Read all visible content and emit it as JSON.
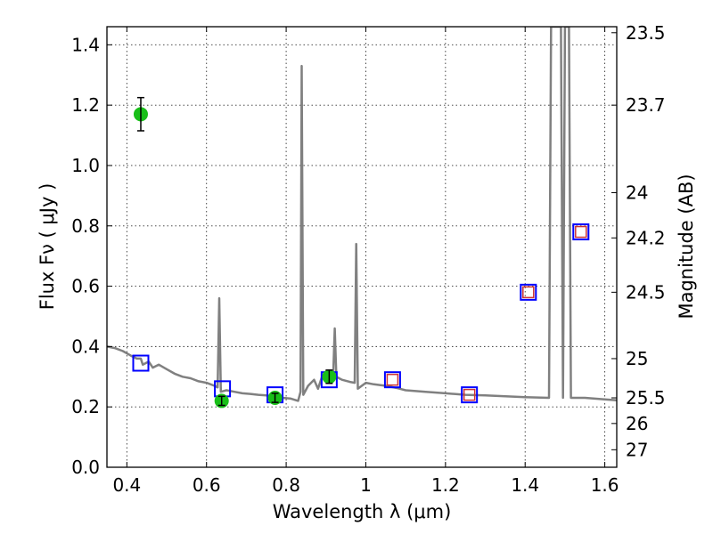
{
  "chart_data": {
    "type": "scatter",
    "xlabel": "Wavelength  λ (μm)",
    "ylabel": "Flux  Fν  ( μJy )",
    "y2label": "Magnitude (AB)",
    "xlim": [
      0.35,
      1.63
    ],
    "ylim": [
      0.0,
      1.46
    ],
    "grid": true,
    "xticks": [
      {
        "value": 0.4,
        "label": "0.4"
      },
      {
        "value": 0.6,
        "label": "0.6"
      },
      {
        "value": 0.8,
        "label": "0.8"
      },
      {
        "value": 1.0,
        "label": "1"
      },
      {
        "value": 1.2,
        "label": "1.2"
      },
      {
        "value": 1.4,
        "label": "1.4"
      },
      {
        "value": 1.6,
        "label": "1.6"
      }
    ],
    "yticks": [
      {
        "value": 0.0,
        "label": "0.0"
      },
      {
        "value": 0.2,
        "label": "0.2"
      },
      {
        "value": 0.4,
        "label": "0.4"
      },
      {
        "value": 0.6,
        "label": "0.6"
      },
      {
        "value": 0.8,
        "label": "0.8"
      },
      {
        "value": 1.0,
        "label": "1.0"
      },
      {
        "value": 1.2,
        "label": "1.2"
      },
      {
        "value": 1.4,
        "label": "1.4"
      }
    ],
    "y2ticks": [
      {
        "label": "23.5",
        "flux": 1.44
      },
      {
        "label": "23.7",
        "flux": 1.2
      },
      {
        "label": "24",
        "flux": 0.91
      },
      {
        "label": "24.2",
        "flux": 0.76
      },
      {
        "label": "24.5",
        "flux": 0.58
      },
      {
        "label": "25",
        "flux": 0.36
      },
      {
        "label": "25.5",
        "flux": 0.23
      },
      {
        "label": "26",
        "flux": 0.145
      },
      {
        "label": "27",
        "flux": 0.058
      }
    ],
    "series": [
      {
        "kind": "line",
        "color": "#808080",
        "points": [
          [
            0.35,
            0.4
          ],
          [
            0.37,
            0.395
          ],
          [
            0.39,
            0.385
          ],
          [
            0.41,
            0.37
          ],
          [
            0.425,
            0.36
          ],
          [
            0.435,
            0.36
          ],
          [
            0.44,
            0.34
          ],
          [
            0.455,
            0.35
          ],
          [
            0.465,
            0.33
          ],
          [
            0.48,
            0.34
          ],
          [
            0.5,
            0.325
          ],
          [
            0.52,
            0.31
          ],
          [
            0.54,
            0.3
          ],
          [
            0.56,
            0.295
          ],
          [
            0.58,
            0.285
          ],
          [
            0.6,
            0.28
          ],
          [
            0.62,
            0.27
          ],
          [
            0.628,
            0.265
          ],
          [
            0.632,
            0.56
          ],
          [
            0.636,
            0.25
          ],
          [
            0.65,
            0.255
          ],
          [
            0.67,
            0.25
          ],
          [
            0.69,
            0.245
          ],
          [
            0.71,
            0.243
          ],
          [
            0.73,
            0.24
          ],
          [
            0.75,
            0.238
          ],
          [
            0.77,
            0.232
          ],
          [
            0.79,
            0.23
          ],
          [
            0.81,
            0.228
          ],
          [
            0.83,
            0.22
          ],
          [
            0.836,
            0.25
          ],
          [
            0.839,
            1.33
          ],
          [
            0.843,
            0.24
          ],
          [
            0.855,
            0.27
          ],
          [
            0.87,
            0.29
          ],
          [
            0.88,
            0.26
          ],
          [
            0.89,
            0.3
          ],
          [
            0.9,
            0.29
          ],
          [
            0.91,
            0.28
          ],
          [
            0.918,
            0.3
          ],
          [
            0.922,
            0.46
          ],
          [
            0.926,
            0.3
          ],
          [
            0.94,
            0.29
          ],
          [
            0.96,
            0.283
          ],
          [
            0.972,
            0.28
          ],
          [
            0.976,
            0.74
          ],
          [
            0.98,
            0.26
          ],
          [
            1.0,
            0.28
          ],
          [
            1.02,
            0.275
          ],
          [
            1.05,
            0.27
          ],
          [
            1.08,
            0.262
          ],
          [
            1.1,
            0.255
          ],
          [
            1.15,
            0.25
          ],
          [
            1.2,
            0.245
          ],
          [
            1.25,
            0.24
          ],
          [
            1.3,
            0.238
          ],
          [
            1.35,
            0.235
          ],
          [
            1.4,
            0.232
          ],
          [
            1.46,
            0.23
          ],
          [
            1.465,
            1.46
          ],
          [
            1.49,
            1.46
          ],
          [
            1.495,
            0.23
          ],
          [
            1.5,
            1.46
          ],
          [
            1.51,
            1.46
          ],
          [
            1.515,
            0.23
          ],
          [
            1.55,
            0.23
          ],
          [
            1.6,
            0.225
          ],
          [
            1.63,
            0.222
          ]
        ]
      },
      {
        "kind": "observed",
        "color": "#19bf19",
        "points": [
          {
            "x": 0.435,
            "y": 1.17,
            "err": 0.055
          },
          {
            "x": 0.638,
            "y": 0.22,
            "err": 0.015
          },
          {
            "x": 0.772,
            "y": 0.23,
            "err": 0.015
          },
          {
            "x": 0.908,
            "y": 0.3,
            "err": 0.022
          }
        ]
      },
      {
        "kind": "model",
        "color": "#0000ff",
        "points": [
          {
            "x": 0.435,
            "y": 0.345
          },
          {
            "x": 0.64,
            "y": 0.26
          },
          {
            "x": 0.772,
            "y": 0.24
          },
          {
            "x": 0.908,
            "y": 0.29
          },
          {
            "x": 1.067,
            "y": 0.29
          },
          {
            "x": 1.26,
            "y": 0.24
          },
          {
            "x": 1.408,
            "y": 0.58
          },
          {
            "x": 1.54,
            "y": 0.78
          }
        ]
      },
      {
        "kind": "model-inner",
        "color": "#cc3333",
        "points": [
          {
            "x": 1.067,
            "y": 0.29
          },
          {
            "x": 1.26,
            "y": 0.24
          },
          {
            "x": 1.408,
            "y": 0.58
          },
          {
            "x": 1.54,
            "y": 0.78
          }
        ]
      }
    ]
  }
}
